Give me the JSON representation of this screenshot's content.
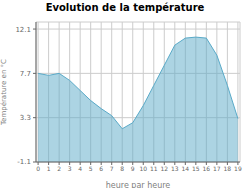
{
  "chart_data": {
    "type": "area",
    "title": "Evolution de la température",
    "xlabel": "heure par heure",
    "ylabel": "Température en °C",
    "x": [
      0,
      1,
      2,
      3,
      4,
      5,
      6,
      7,
      8,
      9,
      10,
      11,
      12,
      13,
      14,
      15,
      16,
      17,
      18,
      19
    ],
    "values": [
      7.7,
      7.5,
      7.7,
      7.0,
      6.0,
      5.0,
      4.2,
      3.5,
      2.2,
      2.8,
      4.5,
      6.5,
      8.5,
      10.5,
      11.2,
      11.3,
      11.2,
      9.5,
      6.5,
      3.2
    ],
    "color": "#5aaac8",
    "xlim": [
      -0.2,
      19.2
    ],
    "xticks": [
      0,
      1,
      2,
      3,
      4,
      5,
      6,
      7,
      8,
      9,
      10,
      11,
      12,
      13,
      14,
      15,
      16,
      17,
      18,
      19
    ],
    "ylim": [
      -1.1,
      12.8
    ],
    "yticks": [
      -1.1,
      3.3,
      7.7,
      12.1
    ],
    "grid": true
  }
}
